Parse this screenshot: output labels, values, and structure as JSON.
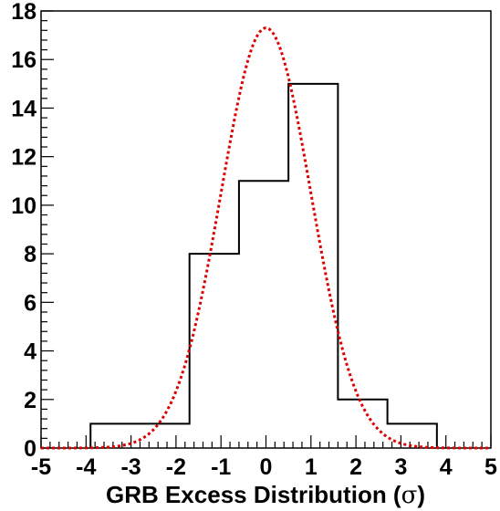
{
  "chart_data": {
    "type": "histogram",
    "xlabel_main": "GRB Excess Distribution (",
    "xlabel_symbol": "σ",
    "xlabel_close": ")",
    "ylabel": "",
    "xlim": [
      -5,
      5
    ],
    "ylim": [
      0,
      18
    ],
    "x_ticks": [
      "-5",
      "-4",
      "-3",
      "-2",
      "-1",
      "0",
      "1",
      "2",
      "3",
      "4",
      "5"
    ],
    "y_ticks": [
      "0",
      "2",
      "4",
      "6",
      "8",
      "10",
      "12",
      "14",
      "16",
      "18"
    ],
    "bins": [
      {
        "x0": -3.9,
        "x1": -1.7,
        "count": 1
      },
      {
        "x0": -1.7,
        "x1": -0.6,
        "count": 8
      },
      {
        "x0": -0.6,
        "x1": 0.5,
        "count": 11
      },
      {
        "x0": 0.5,
        "x1": 1.6,
        "count": 15
      },
      {
        "x0": 1.6,
        "x1": 2.7,
        "count": 2
      },
      {
        "x0": 2.7,
        "x1": 3.8,
        "count": 1
      }
    ],
    "fit": {
      "type": "gaussian",
      "mean": 0,
      "sigma": 1,
      "peak": 17.3,
      "color": "#dd0000",
      "style": "dotted"
    },
    "histogram_color": "#000000",
    "grid": false,
    "legend": "none"
  }
}
